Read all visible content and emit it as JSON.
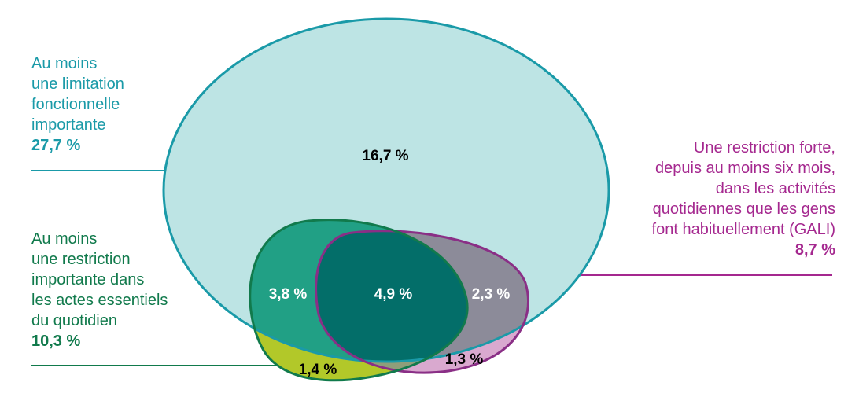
{
  "labels": {
    "limitation": {
      "lines": [
        "Au moins",
        "une limitation",
        "fonctionnelle",
        "importante"
      ],
      "pct": "27,7 %"
    },
    "restriction": {
      "lines": [
        "Au moins",
        "une restriction",
        "importante dans",
        "les actes essentiels",
        "du quotidien"
      ],
      "pct": "10,3 %"
    },
    "gali": {
      "lines": [
        "Une restriction forte,",
        "depuis au moins six mois,",
        "dans les activités",
        "quotidiennes que les gens",
        "font habituellement (GALI)"
      ],
      "pct": "8,7 %"
    }
  },
  "regions": {
    "limitation_only": "16,7 %",
    "limitation_restriction": "3,8 %",
    "all_three": "4,9 %",
    "limitation_gali": "2,3 %",
    "restriction_only": "1,4 %",
    "gali_only": "1,3 %"
  },
  "colors": {
    "limitation_fill": "#bde4e4",
    "limitation_stroke": "#1a9aa8",
    "restriction_stroke": "#117a4c",
    "gali_stroke": "#a5288f",
    "restriction_only_fill": "#b2c829",
    "gali_only_fill": "#d9a9cf",
    "limitation_restriction_fill": "#21a085",
    "limitation_gali_fill": "#8c8b99",
    "all_three_fill": "#036e69"
  }
}
